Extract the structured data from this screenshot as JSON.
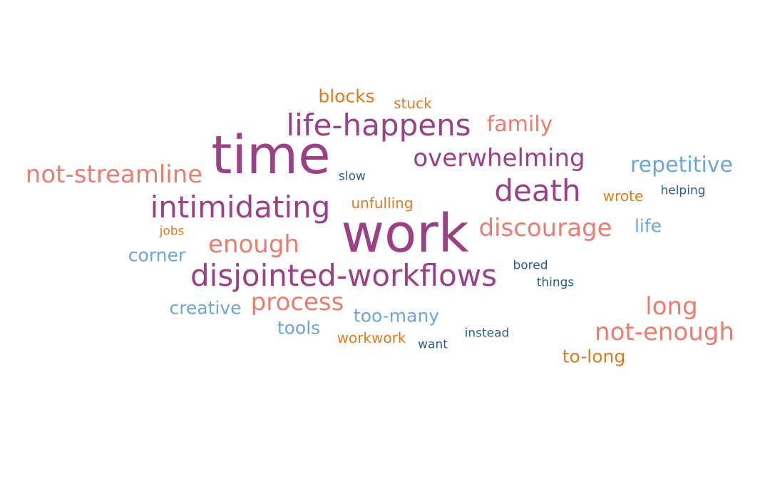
{
  "word_cloud": {
    "words": [
      "time",
      "work",
      "life-happens",
      "overwhelming",
      "death",
      "intimidating",
      "disjointed-workflows",
      "not-streamline",
      "repetitive",
      "discourage",
      "not-enough",
      "long",
      "family",
      "enough",
      "process",
      "too-many",
      "corner",
      "tools",
      "creative",
      "life",
      "blocks",
      "stuck",
      "wrote",
      "unfulling",
      "jobs",
      "workwork",
      "to-long",
      "slow",
      "helping",
      "bored",
      "things",
      "want",
      "instead"
    ],
    "colors": {
      "purple": "#9b3f87",
      "salmon": "#ec7c6f",
      "orange": "#e07a1f",
      "light_blue": "#6aa6dd",
      "dark_blue": "#2a5d8f"
    }
  }
}
